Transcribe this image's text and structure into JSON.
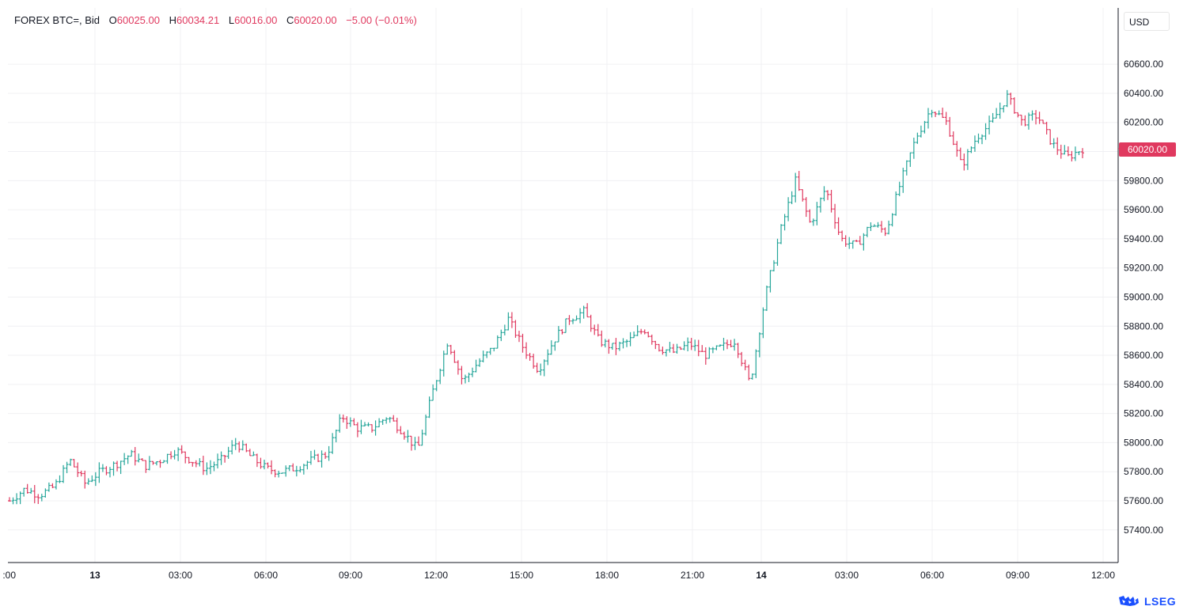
{
  "legend": {
    "symbol": "FOREX BTC=, Bid",
    "open_label": "O",
    "open": "60025.00",
    "high_label": "H",
    "high": "60034.21",
    "low_label": "L",
    "low": "60016.00",
    "close_label": "C",
    "close": "60020.00",
    "change": "−5.00 (−0.01%)"
  },
  "currency": "USD",
  "last_price": "60020.00",
  "brand": {
    "name": "LSEG",
    "logo_icon": "lseg-logo-icon"
  },
  "colors": {
    "up": "#26a69a",
    "down": "#e0395f",
    "grid": "#f0f0f3",
    "axis": "#131722"
  },
  "chart_data": {
    "type": "ohlc",
    "x_ticks": [
      ":00",
      "13",
      "03:00",
      "06:00",
      "09:00",
      "12:00",
      "15:00",
      "18:00",
      "21:00",
      "14",
      "03:00",
      "06:00",
      "09:00",
      "12:00"
    ],
    "y_ticks": [
      "57400.00",
      "57600.00",
      "57800.00",
      "58000.00",
      "58200.00",
      "58400.00",
      "58600.00",
      "58800.00",
      "59000.00",
      "59200.00",
      "59400.00",
      "59600.00",
      "59800.00",
      "60000.00",
      "60200.00",
      "60400.00",
      "60600.00"
    ],
    "ylim": [
      57200,
      60800
    ],
    "grid": true,
    "legend_position": "top-left",
    "close_path": [
      57600,
      57680,
      57640,
      57700,
      57880,
      57720,
      57800,
      57850,
      57920,
      57840,
      57880,
      57950,
      57880,
      57820,
      57880,
      58000,
      57900,
      57820,
      57800,
      57830,
      57880,
      57920,
      58180,
      58100,
      58100,
      58180,
      58080,
      57950,
      58350,
      58700,
      58420,
      58550,
      58650,
      58850,
      58650,
      58500,
      58700,
      58850,
      58900,
      58700,
      58650,
      58700,
      58780,
      58650,
      58620,
      58680,
      58600,
      58650,
      58700,
      58400,
      59000,
      59450,
      59800,
      59500,
      59750,
      59400,
      59350,
      59500,
      59450,
      59800,
      60100,
      60300,
      60200,
      59900,
      60100,
      60200,
      60380,
      60200,
      60250,
      60050,
      59960,
      60020
    ]
  }
}
